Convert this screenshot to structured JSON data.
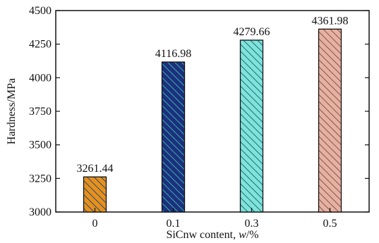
{
  "chart_data": {
    "type": "bar",
    "categories": [
      "0",
      "0.1",
      "0.3",
      "0.5"
    ],
    "values": [
      3261.44,
      4116.98,
      4279.66,
      4361.98
    ],
    "data_labels": [
      "3261.44",
      "4116.98",
      "4279.66",
      "4361.98"
    ],
    "title": "",
    "xlabel": "SiCnw content, ",
    "xlabel_var": "w",
    "xlabel_unit": "/%",
    "ylabel": "Hardness/MPa",
    "ylim": [
      3000,
      4500
    ],
    "yticks": [
      3000,
      3250,
      3500,
      3750,
      4000,
      4250,
      4500
    ],
    "ytick_labels": [
      "3000",
      "3250",
      "3500",
      "3750",
      "4000",
      "4250",
      "4500"
    ],
    "grid": false,
    "bar_colors": [
      {
        "fill": "#e8901c",
        "hatch": "#1f4d78"
      },
      {
        "fill": "#1d2f7e",
        "hatch": "#2fb6a6"
      },
      {
        "fill": "#7fe3dc",
        "hatch": "#1f6f70"
      },
      {
        "fill": "#e8b0a0",
        "hatch": "#7a5a52"
      }
    ]
  }
}
